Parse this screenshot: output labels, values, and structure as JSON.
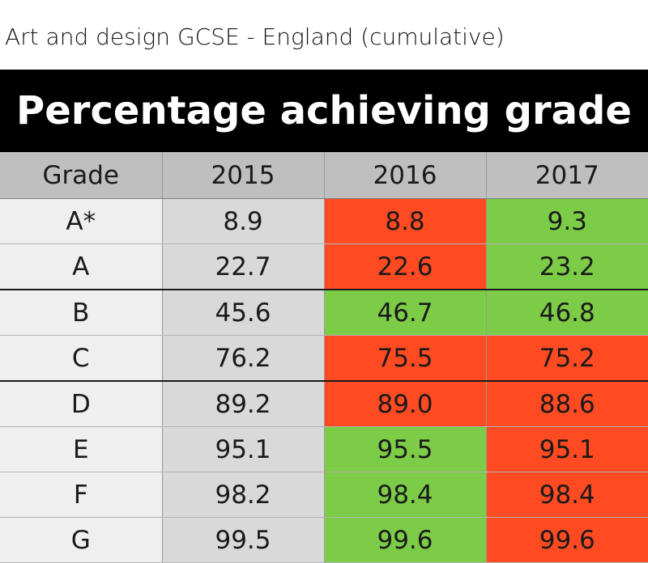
{
  "caption": "Art and design GCSE - England (cumulative)",
  "banner": "Percentage achieving grade",
  "colors": {
    "up": "#7ccc47",
    "down": "#ff4a22",
    "header": "#bfbfbf",
    "baseline": "#d9d9d9",
    "grade": "#efefef"
  },
  "chart_data": {
    "type": "table",
    "title": "Percentage achieving grade",
    "columns": [
      "Grade",
      "2015",
      "2016",
      "2017"
    ],
    "rows": [
      {
        "grade": "A*",
        "values": [
          "8.9",
          "8.8",
          "9.3"
        ],
        "change": [
          "none",
          "down",
          "up"
        ]
      },
      {
        "grade": "A",
        "values": [
          "22.7",
          "22.6",
          "23.2"
        ],
        "change": [
          "none",
          "down",
          "up"
        ]
      },
      {
        "grade": "B",
        "values": [
          "45.6",
          "46.7",
          "46.8"
        ],
        "change": [
          "none",
          "up",
          "up"
        ]
      },
      {
        "grade": "C",
        "values": [
          "76.2",
          "75.5",
          "75.2"
        ],
        "change": [
          "none",
          "down",
          "down"
        ]
      },
      {
        "grade": "D",
        "values": [
          "89.2",
          "89.0",
          "88.6"
        ],
        "change": [
          "none",
          "down",
          "down"
        ]
      },
      {
        "grade": "E",
        "values": [
          "95.1",
          "95.5",
          "95.1"
        ],
        "change": [
          "none",
          "up",
          "down"
        ]
      },
      {
        "grade": "F",
        "values": [
          "98.2",
          "98.4",
          "98.4"
        ],
        "change": [
          "none",
          "up",
          "down"
        ]
      },
      {
        "grade": "G",
        "values": [
          "99.5",
          "99.6",
          "99.6"
        ],
        "change": [
          "none",
          "up",
          "down"
        ]
      }
    ]
  }
}
